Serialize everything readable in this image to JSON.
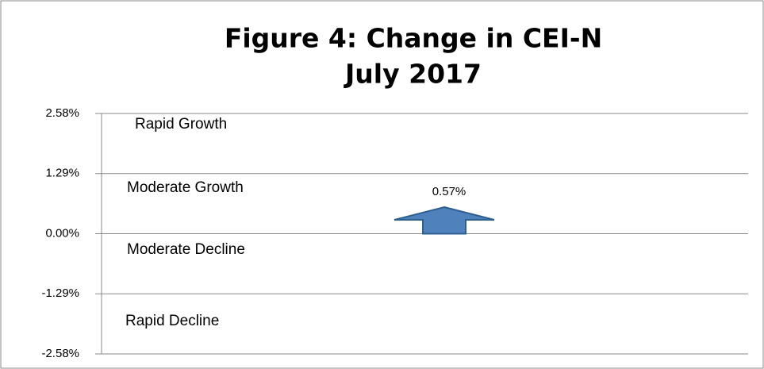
{
  "chart_data": {
    "type": "arrow",
    "title": "Figure 4:  Change in CEI-N",
    "subtitle": "July 2017",
    "values": [
      0.57
    ],
    "value_labels": [
      "0.57%"
    ],
    "color": "#4f81bd",
    "ylim": [
      -2.58,
      2.58
    ],
    "yticks": [
      {
        "value": 2.58,
        "label": "2.58%"
      },
      {
        "value": 1.29,
        "label": "1.29%"
      },
      {
        "value": 0,
        "label": "0.00%"
      },
      {
        "value": -1.29,
        "label": "-1.29%"
      },
      {
        "value": -2.58,
        "label": "-2.58%"
      }
    ],
    "grid": true,
    "annotations": [
      "Rapid Growth",
      "Moderate Growth",
      "Moderate Decline",
      "Rapid Decline"
    ]
  }
}
